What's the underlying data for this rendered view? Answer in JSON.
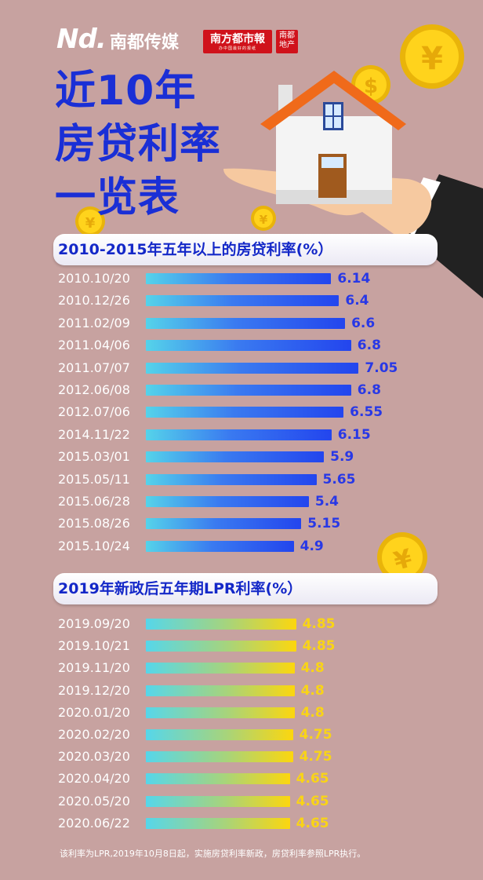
{
  "header": {
    "brand_nd": "Nd.",
    "brand_media": "南都传媒",
    "badge_red_main": "南方都市報",
    "badge_red_sub": "办中国最好的报纸",
    "badge_dc": "南都地产"
  },
  "title_lines": [
    "近10年",
    "房贷利率",
    "一览表"
  ],
  "footnote": "该利率为LPR,2019年10月8日起，实施房贷利率新政，房贷利率参照LPR执行。",
  "colors": {
    "background": "#c7a2a0",
    "title": "#1a2fd6",
    "series1_value": "#2838e6",
    "series2_value": "#f9d416"
  },
  "icons": [
    "house-icon",
    "hand-icon",
    "yuan-coin-icon",
    "dollar-coin-icon"
  ],
  "chart_data": [
    {
      "type": "bar",
      "orientation": "horizontal",
      "title": "2010-2015年五年以上的房贷利率(%）",
      "categories": [
        "2010.10/20",
        "2010.12/26",
        "2011.02/09",
        "2011.04/06",
        "2011.07/07",
        "2012.06/08",
        "2012.07/06",
        "2014.11/22",
        "2015.03/01",
        "2015.05/11",
        "2015.06/28",
        "2015.08/26",
        "2015.10/24"
      ],
      "values": [
        6.14,
        6.4,
        6.6,
        6.8,
        7.05,
        6.8,
        6.55,
        6.15,
        5.9,
        5.65,
        5.4,
        5.15,
        4.9
      ],
      "labels": [
        "6.14",
        "6.4",
        "6.6",
        "6.8",
        "7.05",
        "6.8",
        "6.55",
        "6.15",
        "5.9",
        "5.65",
        "5.4",
        "5.15",
        "4.9"
      ]
    },
    {
      "type": "bar",
      "orientation": "horizontal",
      "title": "2019年新政后五年期LPR利率(%）",
      "categories": [
        "2019.09/20",
        "2019.10/21",
        "2019.11/20",
        "2019.12/20",
        "2020.01/20",
        "2020.02/20",
        "2020.03/20",
        "2020.04/20",
        "2020.05/20",
        "2020.06/22"
      ],
      "values": [
        4.85,
        4.85,
        4.8,
        4.8,
        4.8,
        4.75,
        4.75,
        4.65,
        4.65,
        4.65
      ],
      "labels": [
        "4.85",
        "4.85",
        "4.8",
        "4.8",
        "4.8",
        "4.75",
        "4.75",
        "4.65",
        "4.65",
        "4.65"
      ]
    }
  ]
}
